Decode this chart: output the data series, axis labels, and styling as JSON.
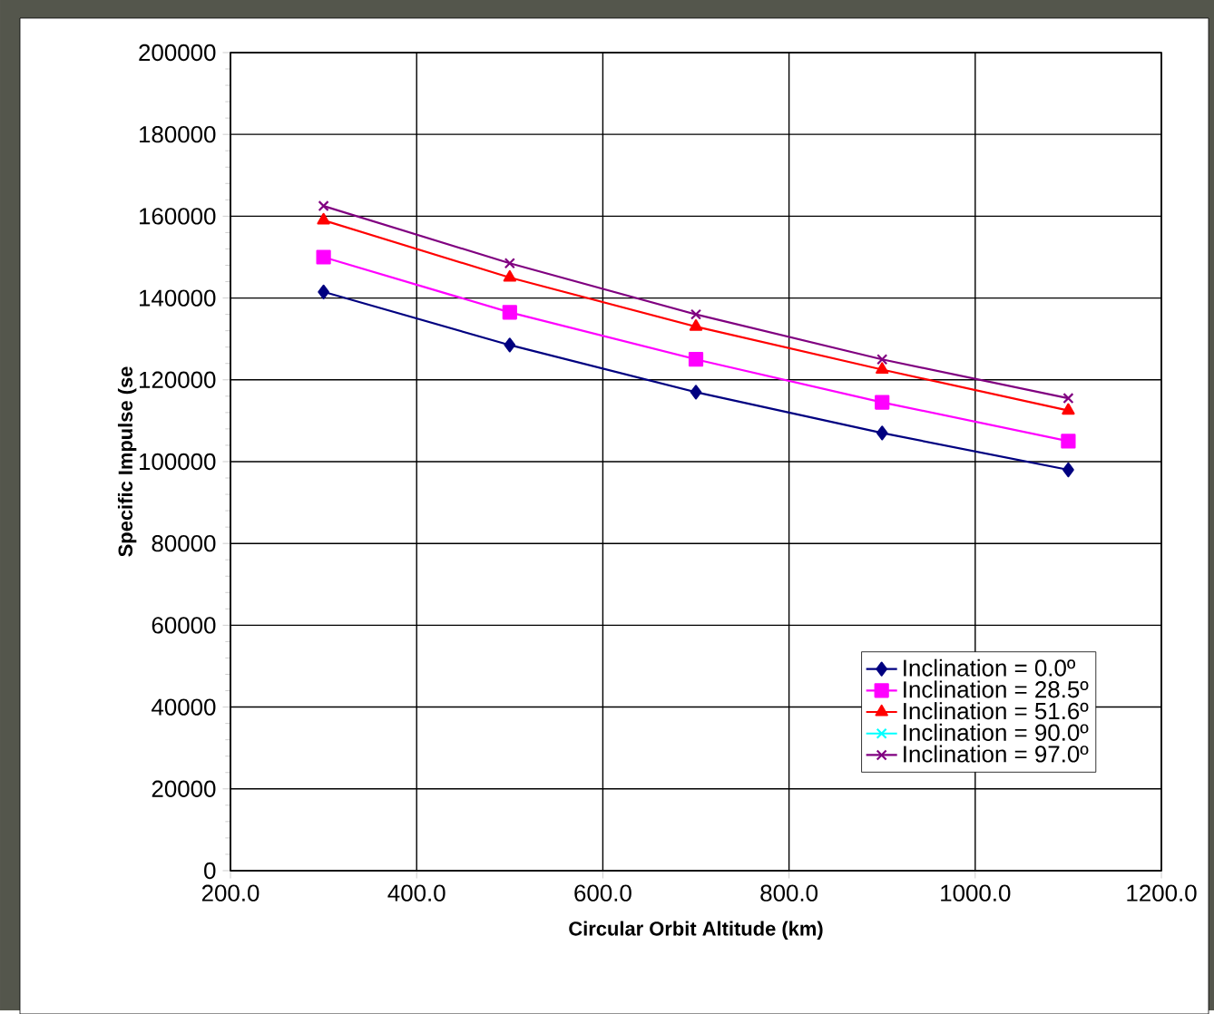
{
  "chart_data": {
    "type": "line",
    "xlabel": "Circular Orbit Altitude (km)",
    "ylabel": "Specific Impulse (se",
    "x": [
      300,
      500,
      700,
      900,
      1100
    ],
    "series": [
      {
        "name": "Inclination = 0.0º",
        "color": "#000080",
        "marker": "diamond",
        "values": [
          141500,
          128500,
          117000,
          107000,
          98000
        ]
      },
      {
        "name": "Inclination = 28.5º",
        "color": "#ff00ff",
        "marker": "square",
        "values": [
          150000,
          136500,
          125000,
          114500,
          105000
        ]
      },
      {
        "name": "Inclination = 51.6º",
        "color": "#ff0000",
        "marker": "triangle",
        "values": [
          159000,
          145000,
          133000,
          122500,
          112500
        ]
      },
      {
        "name": "Inclination = 90.0º",
        "color": "#00ffff",
        "marker": "cross",
        "values": [
          null,
          null,
          null,
          null,
          null
        ]
      },
      {
        "name": "Inclination = 97.0º",
        "color": "#800080",
        "marker": "cross",
        "values": [
          162500,
          148500,
          136000,
          125000,
          115500
        ]
      }
    ],
    "xlim": [
      200,
      1200
    ],
    "xticks": [
      {
        "value": 200,
        "label": "200.0"
      },
      {
        "value": 400,
        "label": "400.0"
      },
      {
        "value": 600,
        "label": "600.0"
      },
      {
        "value": 800,
        "label": "800.0"
      },
      {
        "value": 1000,
        "label": "1000.0"
      },
      {
        "value": 1200,
        "label": "1200.0"
      }
    ],
    "ylim": [
      0,
      200000
    ],
    "yticks": [
      0,
      20000,
      40000,
      60000,
      80000,
      100000,
      120000,
      140000,
      160000,
      180000,
      200000
    ],
    "grid": true,
    "legend": "bottom right",
    "line_style": "solid"
  }
}
